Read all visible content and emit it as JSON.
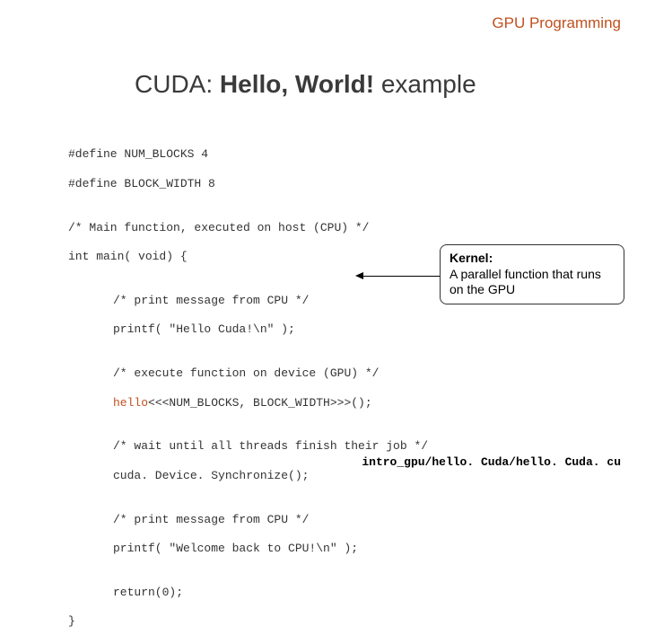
{
  "header": {
    "label": "GPU Programming",
    "color": "#c05020"
  },
  "title": {
    "prefix": "CUDA:   ",
    "bold": "Hello, World!",
    "suffix": "   example",
    "color": "#3a3a3a"
  },
  "code": {
    "color_text": "#333333",
    "color_kernel": "#c05020",
    "lines": {
      "l1": "#define NUM_BLOCKS 4",
      "l2": "#define BLOCK_WIDTH 8",
      "l3": "",
      "l4": "/* Main function, executed on host (CPU) */",
      "l5": "int main( void) {",
      "l6": "",
      "l7": "/* print message from CPU */",
      "l8": "printf( \"Hello Cuda!\\n\" );",
      "l9": "",
      "l10": "/* execute function on device (GPU) */",
      "l11a": "hello",
      "l11b": "<<<NUM_BLOCKS, BLOCK_WIDTH>>>();",
      "l12": "",
      "l13": "/* wait until all threads finish their job */",
      "l14": "cuda. Device. Synchronize();",
      "l15": "",
      "l16": "/* print message from CPU */",
      "l17": "printf( \"Welcome back to CPU!\\n\" );",
      "l18": "",
      "l19": "return(0);",
      "l20": "}"
    }
  },
  "callout": {
    "title": "Kernel:",
    "body": "A parallel function that runs on the GPU"
  },
  "footer": {
    "path": "intro_gpu/hello. Cuda/hello. Cuda. cu"
  }
}
